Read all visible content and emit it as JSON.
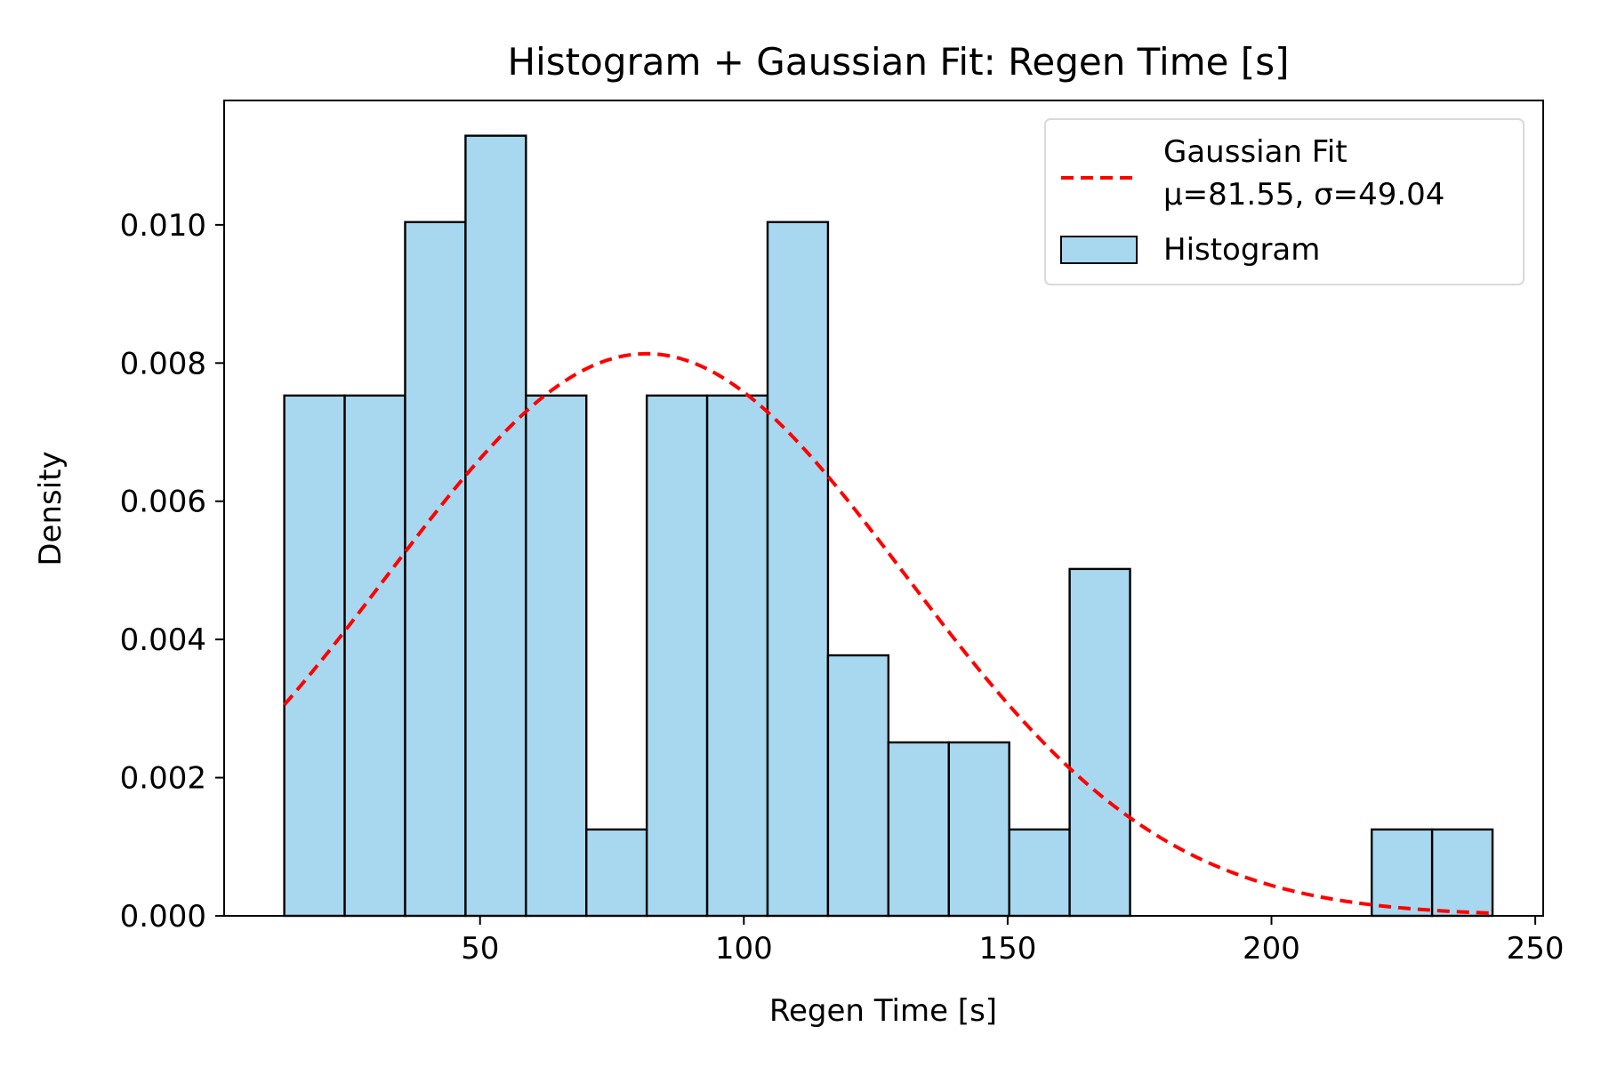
{
  "chart_data": {
    "type": "bar",
    "title": "Histogram + Gaussian Fit: Regen Time [s]",
    "xlabel": "Regen Time [s]",
    "ylabel": "Density",
    "xlim": [
      1.5,
      251.5
    ],
    "ylim": [
      0.0,
      0.0118
    ],
    "x_ticks": [
      {
        "value": 50,
        "label": "50"
      },
      {
        "value": 100,
        "label": "100"
      },
      {
        "value": 150,
        "label": "150"
      },
      {
        "value": 200,
        "label": "200"
      },
      {
        "value": 250,
        "label": "250"
      }
    ],
    "y_ticks": [
      {
        "value": 0.0,
        "label": "0.000"
      },
      {
        "value": 0.002,
        "label": "0.002"
      },
      {
        "value": 0.004,
        "label": "0.004"
      },
      {
        "value": 0.006,
        "label": "0.006"
      },
      {
        "value": 0.008,
        "label": "0.008"
      },
      {
        "value": 0.01,
        "label": "0.010"
      }
    ],
    "bins": {
      "edges": [
        12.9,
        24.35,
        35.8,
        47.25,
        58.7,
        70.15,
        81.6,
        93.05,
        104.5,
        115.95,
        127.4,
        138.85,
        150.3,
        161.75,
        173.2,
        184.65,
        196.1,
        207.55,
        219.0,
        230.45,
        241.9
      ],
      "values": [
        0.00753,
        0.00753,
        0.01004,
        0.01129,
        0.00753,
        0.00125,
        0.00753,
        0.00753,
        0.01004,
        0.00377,
        0.00251,
        0.00251,
        0.00125,
        0.00502,
        0.0,
        0.0,
        0.0,
        0.0,
        0.00125,
        0.00125
      ]
    },
    "series": [
      {
        "name": "Gaussian Fit",
        "type": "line",
        "mu": 81.55,
        "sigma": 49.04,
        "x_range": [
          12.9,
          241.9
        ]
      }
    ],
    "legend": {
      "position": "top-right",
      "entries": [
        {
          "label_line1": "Gaussian Fit",
          "label_line2": "μ=81.55, σ=49.04"
        },
        {
          "label": "Histogram"
        }
      ]
    },
    "colors": {
      "bar_fill": "#a8d8ef",
      "bar_edge": "#000000",
      "fit_line": "#ff0000"
    },
    "grid": false
  }
}
